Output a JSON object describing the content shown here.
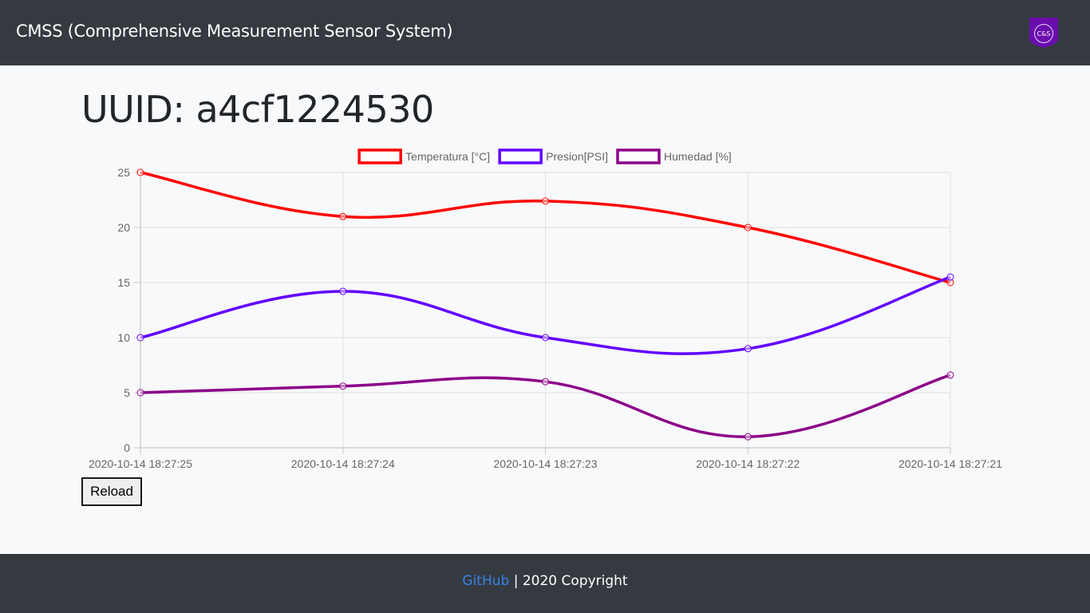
{
  "navbar": {
    "brand": "CMSS (Comprehensive Measurement Sensor System)",
    "logo_text": "C&S",
    "logo_color": "#6a0dad"
  },
  "main": {
    "title": "UUID: a4cf1224530",
    "reload_label": "Reload"
  },
  "footer": {
    "link_label": "GitHub",
    "separator": " | ",
    "copyright": "2020 Copyright"
  },
  "chart_data": {
    "type": "line",
    "categories": [
      "2020-10-14 18:27:25",
      "2020-10-14 18:27:24",
      "2020-10-14 18:27:23",
      "2020-10-14 18:27:22",
      "2020-10-14 18:27:21"
    ],
    "series": [
      {
        "name": "Temperatura [°C]",
        "values": [
          25,
          21,
          22.4,
          20,
          15
        ],
        "color": "#ff0000"
      },
      {
        "name": "Presion[PSI]",
        "values": [
          10,
          14.2,
          10,
          9,
          15.5
        ],
        "color": "#6200ff"
      },
      {
        "name": "Humedad [%]",
        "values": [
          5,
          5.6,
          6,
          1,
          6.6
        ],
        "color": "#8b0088"
      }
    ],
    "yticks": [
      0,
      5,
      10,
      15,
      20,
      25
    ],
    "ylim": [
      0,
      25
    ],
    "grid": true,
    "legend": "top-center",
    "curve": "smooth"
  }
}
